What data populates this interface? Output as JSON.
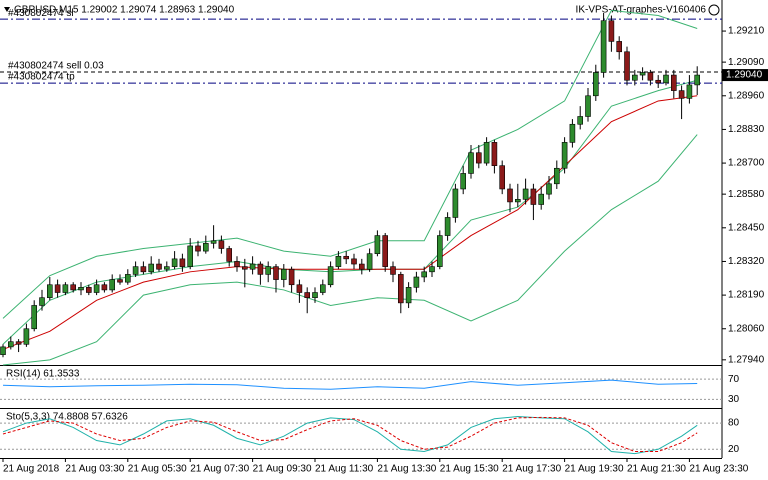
{
  "header": {
    "symbol_line": "GBPUSD,M15  1.29002 1.29074 1.28963 1.29040",
    "expert": "IK-VPS-AT-graphes-V160406"
  },
  "chart_data": [
    {
      "type": "candlestick",
      "bull_color": "#2e8b2e",
      "bear_color": "#8b1a1a",
      "ylim": [
        1.2792,
        1.2933
      ],
      "yticks": [
        {
          "value": 1.2921,
          "label": "1.29210"
        },
        {
          "value": 1.2909,
          "label": "1.29090"
        },
        {
          "value": 1.2896,
          "label": "1.28960"
        },
        {
          "value": 1.2883,
          "label": "1.28830"
        },
        {
          "value": 1.287,
          "label": "1.28700"
        },
        {
          "value": 1.2858,
          "label": "1.28580"
        },
        {
          "value": 1.2845,
          "label": "1.28450"
        },
        {
          "value": 1.2832,
          "label": "1.28320"
        },
        {
          "value": 1.2819,
          "label": "1.28190"
        },
        {
          "value": 1.2806,
          "label": "1.28060"
        },
        {
          "value": 1.2794,
          "label": "1.27940"
        }
      ],
      "last_price": {
        "value": 1.2904,
        "label": "1.29040"
      },
      "order_lines": [
        {
          "label": "#430802474 sl",
          "price": 1.29256,
          "color": "#000080",
          "dash": "8 3 2 3"
        },
        {
          "label": "#430802474 sell 0.03",
          "price": 1.29052,
          "color": "#000000",
          "dash": "4 3"
        },
        {
          "label": "#430802474 tp",
          "price": 1.29009,
          "color": "#000080",
          "dash": "8 3 2 3"
        }
      ],
      "categories": [
        "21 Aug 2018",
        null,
        null,
        null,
        null,
        null,
        null,
        null,
        "21 Aug 03:30",
        null,
        null,
        null,
        null,
        null,
        null,
        null,
        "21 Aug 05:30",
        null,
        null,
        null,
        null,
        null,
        null,
        null,
        "21 Aug 07:30",
        null,
        null,
        null,
        null,
        null,
        null,
        null,
        "21 Aug 09:30",
        null,
        null,
        null,
        null,
        null,
        null,
        null,
        "21 Aug 11:30",
        null,
        null,
        null,
        null,
        null,
        null,
        null,
        "21 Aug 13:30",
        null,
        null,
        null,
        null,
        null,
        null,
        null,
        "21 Aug 15:30",
        null,
        null,
        null,
        null,
        null,
        null,
        null,
        "21 Aug 17:30",
        null,
        null,
        null,
        null,
        null,
        null,
        null,
        "21 Aug 19:30",
        null,
        null,
        null,
        null,
        null,
        null,
        null,
        "21 Aug 21:30",
        null,
        null,
        null,
        null,
        null,
        null,
        null,
        "21 Aug 23:30",
        null
      ],
      "candles": [
        [
          1.2796,
          1.28,
          1.2795,
          1.2799
        ],
        [
          1.2799,
          1.2803,
          1.2798,
          1.2801
        ],
        [
          1.2801,
          1.2802,
          1.2797,
          1.28
        ],
        [
          1.28,
          1.2808,
          1.2799,
          1.2806
        ],
        [
          1.2806,
          1.2817,
          1.2805,
          1.2815
        ],
        [
          1.2815,
          1.2821,
          1.2813,
          1.2818
        ],
        [
          1.2818,
          1.2826,
          1.2817,
          1.2823
        ],
        [
          1.2823,
          1.2825,
          1.2818,
          1.282
        ],
        [
          1.282,
          1.2824,
          1.2819,
          1.2823
        ],
        [
          1.2823,
          1.2824,
          1.282,
          1.2821
        ],
        [
          1.2821,
          1.2824,
          1.2819,
          1.2822
        ],
        [
          1.2822,
          1.2823,
          1.2819,
          1.282
        ],
        [
          1.282,
          1.2825,
          1.2819,
          1.2823
        ],
        [
          1.2823,
          1.2824,
          1.282,
          1.2821
        ],
        [
          1.2821,
          1.2827,
          1.282,
          1.2825
        ],
        [
          1.2825,
          1.2827,
          1.2823,
          1.2824
        ],
        [
          1.2824,
          1.2829,
          1.2823,
          1.2827
        ],
        [
          1.2827,
          1.2832,
          1.2826,
          1.283
        ],
        [
          1.283,
          1.2832,
          1.2827,
          1.2828
        ],
        [
          1.2828,
          1.2834,
          1.2827,
          1.2831
        ],
        [
          1.2831,
          1.2833,
          1.2828,
          1.2829
        ],
        [
          1.2829,
          1.2832,
          1.2828,
          1.283
        ],
        [
          1.283,
          1.2836,
          1.2829,
          1.2833
        ],
        [
          1.2833,
          1.2835,
          1.2828,
          1.283
        ],
        [
          1.283,
          1.2841,
          1.2829,
          1.2838
        ],
        [
          1.2838,
          1.284,
          1.2834,
          1.2836
        ],
        [
          1.2836,
          1.2842,
          1.2835,
          1.2839
        ],
        [
          1.2839,
          1.2846,
          1.2837,
          1.284
        ],
        [
          1.284,
          1.2842,
          1.2835,
          1.2837
        ],
        [
          1.2837,
          1.2838,
          1.283,
          1.2832
        ],
        [
          1.2832,
          1.2834,
          1.2828,
          1.283
        ],
        [
          1.283,
          1.2833,
          1.2822,
          1.2829
        ],
        [
          1.2829,
          1.2834,
          1.2827,
          1.2831
        ],
        [
          1.2831,
          1.2832,
          1.2823,
          1.2827
        ],
        [
          1.2827,
          1.2832,
          1.2824,
          1.283
        ],
        [
          1.283,
          1.2831,
          1.282,
          1.2825
        ],
        [
          1.2825,
          1.2831,
          1.2822,
          1.2829
        ],
        [
          1.2829,
          1.283,
          1.282,
          1.2823
        ],
        [
          1.2823,
          1.2825,
          1.2816,
          1.282
        ],
        [
          1.282,
          1.2822,
          1.2812,
          1.2818
        ],
        [
          1.2818,
          1.2822,
          1.2816,
          1.282
        ],
        [
          1.282,
          1.2825,
          1.2819,
          1.2823
        ],
        [
          1.2823,
          1.2832,
          1.2822,
          1.283
        ],
        [
          1.283,
          1.2836,
          1.2829,
          1.2834
        ],
        [
          1.2834,
          1.2836,
          1.2831,
          1.2833
        ],
        [
          1.2833,
          1.2835,
          1.2829,
          1.2831
        ],
        [
          1.2831,
          1.2833,
          1.2827,
          1.2829
        ],
        [
          1.2829,
          1.2837,
          1.2828,
          1.2835
        ],
        [
          1.2835,
          1.2844,
          1.2834,
          1.2842
        ],
        [
          1.2842,
          1.2843,
          1.2828,
          1.283
        ],
        [
          1.283,
          1.2832,
          1.2824,
          1.2827
        ],
        [
          1.2827,
          1.2828,
          1.2812,
          1.2816
        ],
        [
          1.2816,
          1.2824,
          1.2814,
          1.2822
        ],
        [
          1.2822,
          1.2828,
          1.282,
          1.2826
        ],
        [
          1.2826,
          1.283,
          1.2824,
          1.2828
        ],
        [
          1.2828,
          1.2832,
          1.2826,
          1.283
        ],
        [
          1.283,
          1.2844,
          1.2829,
          1.2842
        ],
        [
          1.2842,
          1.2851,
          1.284,
          1.2849
        ],
        [
          1.2849,
          1.2862,
          1.2847,
          1.286
        ],
        [
          1.286,
          1.2869,
          1.2858,
          1.2866
        ],
        [
          1.2866,
          1.2877,
          1.2864,
          1.2874
        ],
        [
          1.2874,
          1.2877,
          1.2868,
          1.287
        ],
        [
          1.287,
          1.288,
          1.2869,
          1.2878
        ],
        [
          1.2878,
          1.2879,
          1.2866,
          1.2869
        ],
        [
          1.2869,
          1.2871,
          1.2858,
          1.286
        ],
        [
          1.286,
          1.2862,
          1.2851,
          1.2855
        ],
        [
          1.2855,
          1.2862,
          1.2853,
          1.2856
        ],
        [
          1.2856,
          1.2864,
          1.2854,
          1.286
        ],
        [
          1.286,
          1.2862,
          1.2848,
          1.2854
        ],
        [
          1.2854,
          1.2861,
          1.2852,
          1.2858
        ],
        [
          1.2858,
          1.2865,
          1.2856,
          1.2862
        ],
        [
          1.2862,
          1.2871,
          1.286,
          1.2868
        ],
        [
          1.2868,
          1.288,
          1.2866,
          1.2878
        ],
        [
          1.2878,
          1.2887,
          1.2876,
          1.2885
        ],
        [
          1.2885,
          1.2892,
          1.2883,
          1.2888
        ],
        [
          1.2888,
          1.2899,
          1.2886,
          1.2896
        ],
        [
          1.2896,
          1.2908,
          1.2894,
          1.2905
        ],
        [
          1.2905,
          1.2928,
          1.2903,
          1.2925
        ],
        [
          1.2925,
          1.2927,
          1.2913,
          1.2917
        ],
        [
          1.2917,
          1.2919,
          1.291,
          1.2913
        ],
        [
          1.2913,
          1.2915,
          1.29,
          1.2902
        ],
        [
          1.2902,
          1.2906,
          1.29,
          1.2904
        ],
        [
          1.2904,
          1.2907,
          1.2902,
          1.2905
        ],
        [
          1.2905,
          1.2906,
          1.29,
          1.2902
        ],
        [
          1.2902,
          1.2904,
          1.2899,
          1.2901
        ],
        [
          1.2901,
          1.2906,
          1.29,
          1.2904
        ],
        [
          1.2904,
          1.2906,
          1.2895,
          1.2898
        ],
        [
          1.2898,
          1.29,
          1.2887,
          1.2895
        ],
        [
          1.2895,
          1.2904,
          1.2893,
          1.29002
        ],
        [
          1.29002,
          1.29074,
          1.28963,
          1.2904
        ]
      ],
      "overlays": [
        {
          "color": "#3cb371",
          "x": [
            0,
            6,
            12,
            18,
            24,
            30,
            36,
            42,
            48,
            54,
            60,
            66,
            72,
            78,
            84,
            89
          ],
          "values": [
            1.281,
            1.28265,
            1.2834,
            1.2837,
            1.2839,
            1.2841,
            1.2836,
            1.2834,
            1.284,
            1.284,
            1.2875,
            1.2883,
            1.2894,
            1.2929,
            1.2927,
            1.2922
          ]
        },
        {
          "color": "#3cb371",
          "x": [
            0,
            6,
            12,
            18,
            24,
            30,
            36,
            42,
            48,
            54,
            60,
            66,
            72,
            78,
            84,
            89
          ],
          "values": [
            1.28,
            1.2817,
            1.2824,
            1.2827,
            1.283,
            1.2832,
            1.2829,
            1.2828,
            1.2829,
            1.2829,
            1.2848,
            1.2853,
            1.2868,
            1.2892,
            1.2898,
            1.2902
          ]
        },
        {
          "color": "#3cb371",
          "x": [
            0,
            6,
            12,
            18,
            24,
            30,
            36,
            42,
            48,
            54,
            60,
            66,
            72,
            78,
            84,
            89
          ],
          "values": [
            1.2792,
            1.2794,
            1.2801,
            1.2819,
            1.2823,
            1.2824,
            1.2821,
            1.2815,
            1.2818,
            1.2817,
            1.2809,
            1.2817,
            1.2836,
            1.2852,
            1.2863,
            1.2881
          ]
        },
        {
          "color": "#cc0000",
          "x": [
            0,
            6,
            12,
            18,
            24,
            30,
            36,
            42,
            48,
            54,
            60,
            66,
            72,
            78,
            84,
            89
          ],
          "values": [
            1.2798,
            1.2805,
            1.2817,
            1.2824,
            1.2828,
            1.283,
            1.2829,
            1.2829,
            1.2829,
            1.2829,
            1.2842,
            1.2852,
            1.2869,
            1.2886,
            1.2894,
            1.2896
          ]
        }
      ]
    },
    {
      "type": "line",
      "title": "RSI(14) 61.3533",
      "ylim": [
        15,
        94
      ],
      "yticks": [
        70,
        30
      ],
      "x": [
        0,
        6,
        12,
        18,
        24,
        30,
        36,
        42,
        48,
        54,
        60,
        66,
        72,
        78,
        84,
        89
      ],
      "series": [
        {
          "color": "#1e90ff",
          "values": [
            58,
            55,
            57,
            58,
            60,
            59,
            52,
            50,
            55,
            52,
            65,
            58,
            63,
            68,
            60,
            61.3533
          ]
        }
      ]
    },
    {
      "type": "line",
      "title": "Sto(5,3,3) 74.8808 57.6326",
      "ylim": [
        0,
        110
      ],
      "yticks": [
        80,
        20
      ],
      "x": [
        0,
        3,
        6,
        9,
        12,
        15,
        18,
        21,
        24,
        27,
        30,
        33,
        36,
        39,
        42,
        45,
        48,
        51,
        54,
        57,
        60,
        63,
        66,
        69,
        72,
        75,
        78,
        81,
        84,
        87,
        89
      ],
      "series": [
        {
          "color": "#20b2aa",
          "values": [
            60,
            80,
            90,
            70,
            40,
            30,
            55,
            85,
            90,
            75,
            45,
            30,
            50,
            80,
            92,
            88,
            60,
            20,
            15,
            30,
            70,
            90,
            95,
            92,
            90,
            60,
            15,
            10,
            20,
            50,
            74.8808
          ]
        },
        {
          "color": "#dd0000",
          "dash": "3 2",
          "values": [
            55,
            70,
            85,
            80,
            55,
            40,
            45,
            70,
            85,
            82,
            60,
            40,
            42,
            65,
            85,
            90,
            75,
            40,
            20,
            25,
            50,
            80,
            92,
            93,
            92,
            75,
            35,
            15,
            15,
            35,
            57.6326
          ]
        }
      ]
    }
  ]
}
